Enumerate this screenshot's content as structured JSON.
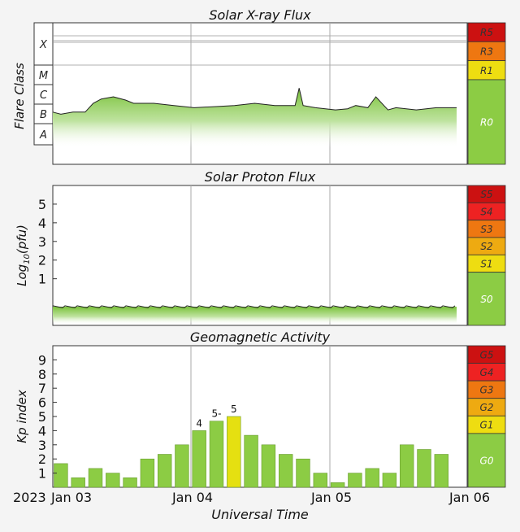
{
  "chart_data": [
    {
      "type": "area",
      "title": "Solar X-ray Flux",
      "ylabel": "Flare Class",
      "class_labels": [
        "X",
        "M",
        "C",
        "B",
        "A"
      ],
      "scale": [
        {
          "label": "R5",
          "color": "#cc1111"
        },
        {
          "label": "R3",
          "color": "#ee7711"
        },
        {
          "label": "R1",
          "color": "#eedd11"
        },
        {
          "label": "R0",
          "color": "#8ccc44"
        }
      ],
      "x": [
        0,
        0.02,
        0.05,
        0.08,
        0.1,
        0.12,
        0.15,
        0.18,
        0.2,
        0.25,
        0.3,
        0.35,
        0.4,
        0.45,
        0.5,
        0.55,
        0.6,
        0.61,
        0.62,
        0.65,
        0.7,
        0.73,
        0.75,
        0.78,
        0.8,
        0.83,
        0.85,
        0.9,
        0.95,
        1.0
      ],
      "values": [
        1.9,
        1.8,
        1.9,
        1.9,
        2.3,
        2.5,
        2.6,
        2.45,
        2.3,
        2.3,
        2.2,
        2.1,
        2.15,
        2.2,
        2.3,
        2.2,
        2.2,
        3.0,
        2.2,
        2.1,
        2.0,
        2.05,
        2.2,
        2.1,
        2.6,
        2.0,
        2.1,
        2.0,
        2.1,
        2.1
      ],
      "ylim": [
        -0.5,
        6.0
      ]
    },
    {
      "type": "area",
      "title": "Solar Proton Flux",
      "ylabel": "Log10(pfu)",
      "ylabel_base": "Log",
      "ylabel_sub": "10",
      "ylabel_rest": "(pfu)",
      "yticks": [
        "1",
        "2",
        "3",
        "4",
        "5"
      ],
      "scale": [
        {
          "label": "S5",
          "color": "#cc1111"
        },
        {
          "label": "S4",
          "color": "#ee2222"
        },
        {
          "label": "S3",
          "color": "#ee7711"
        },
        {
          "label": "S2",
          "color": "#eeaa11"
        },
        {
          "label": "S1",
          "color": "#eedd11"
        },
        {
          "label": "S0",
          "color": "#8ccc44"
        }
      ],
      "value": -0.5,
      "ylim": [
        -1.5,
        6.0
      ]
    },
    {
      "type": "bar",
      "title": "Geomagnetic Activity",
      "ylabel": "Kp index",
      "xlabel": "Universal Time",
      "yticks": [
        "1",
        "2",
        "3",
        "4",
        "5",
        "6",
        "7",
        "8",
        "9"
      ],
      "year": "2023",
      "x_ticks": [
        "Jan 03",
        "Jan 04",
        "Jan 05",
        "Jan 06"
      ],
      "values": [
        1.67,
        0.67,
        1.33,
        1.0,
        0.67,
        2.0,
        2.33,
        3.0,
        4.0,
        4.67,
        5.0,
        3.67,
        3.0,
        2.33,
        2.0,
        1.0,
        0.33,
        1.0,
        1.33,
        1.0,
        3.0,
        2.67,
        2.33
      ],
      "bar_labels": {
        "8": "4",
        "9": "5-",
        "10": "5"
      },
      "highlight_index": 10,
      "colors": {
        "normal": "#8ccc44",
        "highlight": "#e5e011"
      },
      "scale": [
        {
          "label": "G5",
          "color": "#cc1111"
        },
        {
          "label": "G4",
          "color": "#ee2222"
        },
        {
          "label": "G3",
          "color": "#ee7711"
        },
        {
          "label": "G2",
          "color": "#eeaa11"
        },
        {
          "label": "G1",
          "color": "#eedd11"
        },
        {
          "label": "G0",
          "color": "#8ccc44"
        }
      ],
      "ylim": [
        0,
        10
      ]
    }
  ]
}
